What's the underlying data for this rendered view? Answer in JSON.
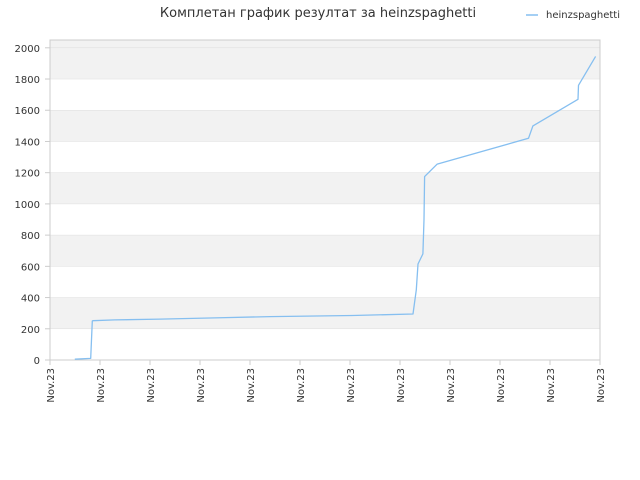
{
  "chart_data": {
    "type": "line",
    "title": "Комплетан график резултат за heinzspaghetti",
    "xlabel": "",
    "ylabel": "",
    "ylim": [
      0,
      2050
    ],
    "yticks": [
      0,
      200,
      400,
      600,
      800,
      1000,
      1200,
      1400,
      1600,
      1800,
      2000
    ],
    "xticks": [
      "Nov.23",
      "Nov.23",
      "Nov.23",
      "Nov.23",
      "Nov.23",
      "Nov.23",
      "Nov.23",
      "Nov.23",
      "Nov.23",
      "Nov.23",
      "Nov.23",
      "Nov.23"
    ],
    "xlim": [
      0,
      1
    ],
    "grid": "horizontal alternating bands",
    "legend_position": "top-right",
    "colors": {
      "series": "#86bff0",
      "band": "#f2f2f2",
      "axis": "#cccccc",
      "grid": "#dddddd"
    },
    "series": [
      {
        "name": "heinzspaghetti",
        "x": [
          0.045,
          0.074,
          0.077,
          0.078,
          0.118,
          0.2,
          0.3,
          0.4,
          0.55,
          0.66,
          0.666,
          0.669,
          0.678,
          0.68,
          0.681,
          0.704,
          0.87,
          0.878,
          0.96,
          0.961,
          0.992
        ],
        "y": [
          5,
          10,
          250,
          252,
          257,
          262,
          270,
          278,
          285,
          295,
          450,
          615,
          680,
          900,
          1175,
          1255,
          1420,
          1500,
          1670,
          1760,
          1945
        ]
      }
    ]
  }
}
